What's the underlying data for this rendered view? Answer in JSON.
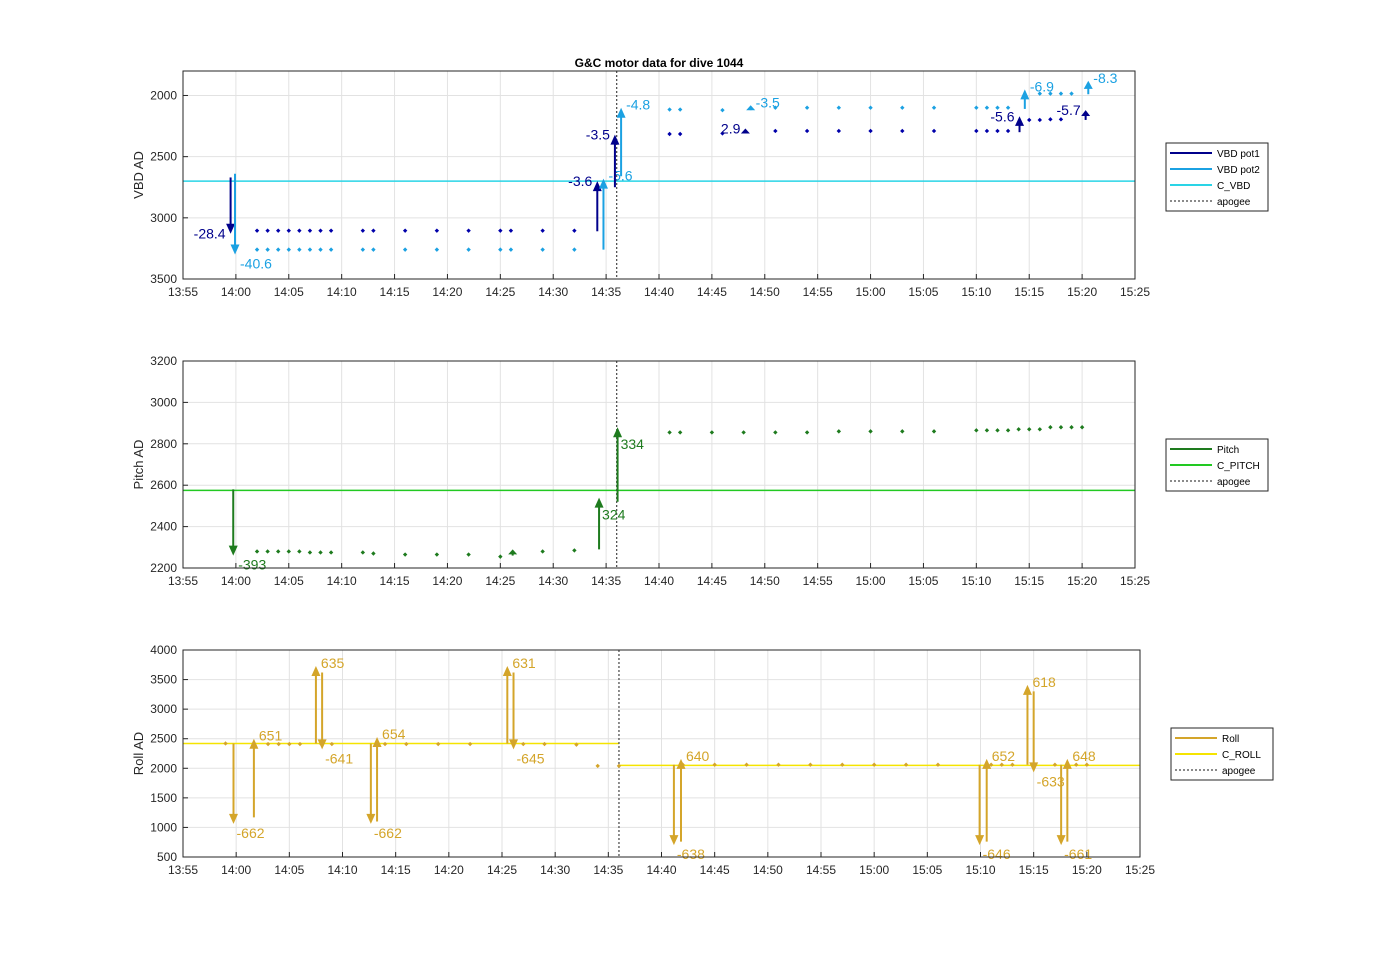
{
  "chart_data": [
    {
      "type": "scatter",
      "title": "G&C motor data for dive 1044",
      "ylabel": "VBD AD",
      "xlim": [
        "13:55",
        "15:25"
      ],
      "ylim": [
        3500,
        1800
      ],
      "y_reversed": true,
      "yticks": [
        2000,
        2500,
        3000,
        3500
      ],
      "xticks": [
        "13:55",
        "14:00",
        "14:05",
        "14:10",
        "14:15",
        "14:20",
        "14:25",
        "14:30",
        "14:35",
        "14:40",
        "14:45",
        "14:50",
        "14:55",
        "15:00",
        "15:05",
        "15:10",
        "15:15",
        "15:20",
        "15:25"
      ],
      "grid": true,
      "legend_position": "outside-right",
      "apogee": "14:36",
      "legend": [
        {
          "label": "VBD pot1",
          "color": "#00008b",
          "style": "solid"
        },
        {
          "label": "VBD pot2",
          "color": "#1ba1e2",
          "style": "solid"
        },
        {
          "label": "C_VBD",
          "color": "#2ad4e6",
          "style": "solid"
        },
        {
          "label": "apogee",
          "color": "#444444",
          "style": "dotted"
        }
      ],
      "hlines": [
        {
          "y": 2700,
          "color": "#2ad4e6"
        }
      ],
      "series": [
        {
          "color": "#0000aa",
          "x": [
            "14:02",
            "14:03",
            "14:04",
            "14:05",
            "14:06",
            "14:07",
            "14:08",
            "14:09",
            "14:12",
            "14:13",
            "14:16",
            "14:19",
            "14:22",
            "14:25",
            "14:26",
            "14:29",
            "14:32",
            "14:41",
            "14:42",
            "14:46",
            "14:51",
            "14:54",
            "14:57",
            "15:00",
            "15:03",
            "15:06",
            "15:10",
            "15:11",
            "15:12",
            "15:13",
            "15:15",
            "15:16",
            "15:17",
            "15:18"
          ],
          "y": [
            3105,
            3105,
            3105,
            3105,
            3105,
            3105,
            3105,
            3105,
            3105,
            3105,
            3105,
            3105,
            3105,
            3105,
            3105,
            3105,
            3105,
            2315,
            2315,
            2310,
            2290,
            2290,
            2290,
            2290,
            2290,
            2290,
            2290,
            2290,
            2290,
            2290,
            2200,
            2200,
            2195,
            2195
          ]
        },
        {
          "color": "#1ba1e2",
          "x": [
            "14:02",
            "14:03",
            "14:04",
            "14:05",
            "14:06",
            "14:07",
            "14:08",
            "14:09",
            "14:12",
            "14:13",
            "14:16",
            "14:19",
            "14:22",
            "14:25",
            "14:26",
            "14:29",
            "14:32",
            "14:41",
            "14:42",
            "14:46",
            "14:51",
            "14:54",
            "14:57",
            "15:00",
            "15:03",
            "15:06",
            "15:10",
            "15:11",
            "15:12",
            "15:13",
            "15:16",
            "15:17",
            "15:18",
            "15:19"
          ],
          "y": [
            3260,
            3260,
            3260,
            3260,
            3260,
            3260,
            3260,
            3260,
            3260,
            3260,
            3260,
            3260,
            3260,
            3260,
            3260,
            3260,
            3260,
            2115,
            2115,
            2120,
            2100,
            2100,
            2100,
            2100,
            2100,
            2100,
            2100,
            2100,
            2100,
            2100,
            1985,
            1985,
            1985,
            1985
          ]
        }
      ],
      "arrows": [
        {
          "x": "13:59:30",
          "from": 2670,
          "to": 3130,
          "label": "-28.4",
          "color": "#00008b",
          "label_side": "left"
        },
        {
          "x": "13:59:55",
          "from": 2640,
          "to": 3300,
          "label": "-40.6",
          "color": "#1ba1e2",
          "label_side": "right"
        },
        {
          "x": "14:34:10",
          "from": 3110,
          "to": 2700,
          "label": "-3.6",
          "color": "#00008b",
          "label_side": "left"
        },
        {
          "x": "14:34:45",
          "from": 3260,
          "to": 2680,
          "label": "-5.6",
          "color": "#1ba1e2",
          "label_side": "right"
        },
        {
          "x": "14:35:50",
          "from": 2750,
          "to": 2320,
          "label": "-3.5",
          "color": "#00008b",
          "label_side": "left"
        },
        {
          "x": "14:36:25",
          "from": 2660,
          "to": 2100,
          "label": "-4.8",
          "color": "#1ba1e2",
          "label_side": "right"
        },
        {
          "x": "14:48:10",
          "from": 2310,
          "to": 2270,
          "label": "2.9",
          "color": "#00008b",
          "label_side": "left"
        },
        {
          "x": "14:48:40",
          "from": 2120,
          "to": 2080,
          "label": "-3.5",
          "color": "#1ba1e2",
          "label_side": "right"
        },
        {
          "x": "15:14:05",
          "from": 2300,
          "to": 2170,
          "label": "-5.6",
          "color": "#00008b",
          "label_side": "left"
        },
        {
          "x": "15:14:35",
          "from": 2110,
          "to": 1950,
          "label": "-6.9",
          "color": "#1ba1e2",
          "label_side": "right"
        },
        {
          "x": "15:20:20",
          "from": 2200,
          "to": 2120,
          "label": "-5.7",
          "color": "#00008b",
          "label_side": "left"
        },
        {
          "x": "15:20:35",
          "from": 1990,
          "to": 1880,
          "label": "-8.3",
          "color": "#1ba1e2",
          "label_side": "right"
        }
      ]
    },
    {
      "type": "scatter",
      "title": "",
      "ylabel": "Pitch AD",
      "xlim": [
        "13:55",
        "15:25"
      ],
      "ylim": [
        2200,
        3200
      ],
      "y_reversed": false,
      "yticks": [
        2200,
        2400,
        2600,
        2800,
        3000,
        3200
      ],
      "xticks": [
        "13:55",
        "14:00",
        "14:05",
        "14:10",
        "14:15",
        "14:20",
        "14:25",
        "14:30",
        "14:35",
        "14:40",
        "14:45",
        "14:50",
        "14:55",
        "15:00",
        "15:05",
        "15:10",
        "15:15",
        "15:20",
        "15:25"
      ],
      "grid": true,
      "legend_position": "outside-right",
      "apogee": "14:36",
      "legend": [
        {
          "label": "Pitch",
          "color": "#1e7b1e",
          "style": "solid"
        },
        {
          "label": "C_PITCH",
          "color": "#22c922",
          "style": "solid"
        },
        {
          "label": "apogee",
          "color": "#444444",
          "style": "dotted"
        }
      ],
      "hlines": [
        {
          "y": 2575,
          "color": "#22c922"
        }
      ],
      "series": [
        {
          "color": "#1e7b1e",
          "x": [
            "14:02",
            "14:03",
            "14:04",
            "14:05",
            "14:06",
            "14:07",
            "14:08",
            "14:09",
            "14:12",
            "14:13",
            "14:16",
            "14:19",
            "14:22",
            "14:25",
            "14:29",
            "14:32",
            "14:41",
            "14:42",
            "14:45",
            "14:48",
            "14:51",
            "14:54",
            "14:57",
            "15:00",
            "15:03",
            "15:06",
            "15:10",
            "15:11",
            "15:12",
            "15:13",
            "15:14",
            "15:15",
            "15:16",
            "15:17",
            "15:18",
            "15:19",
            "15:20"
          ],
          "y": [
            2280,
            2280,
            2280,
            2280,
            2280,
            2275,
            2275,
            2275,
            2275,
            2270,
            2265,
            2265,
            2265,
            2255,
            2280,
            2285,
            2855,
            2855,
            2855,
            2855,
            2855,
            2855,
            2860,
            2860,
            2860,
            2860,
            2865,
            2865,
            2865,
            2865,
            2870,
            2870,
            2870,
            2880,
            2880,
            2880,
            2880
          ]
        }
      ],
      "arrows": [
        {
          "x": "13:59:45",
          "from": 2580,
          "to": 2260,
          "label": "-393",
          "color": "#1e7b1e",
          "label_side": "right"
        },
        {
          "x": "14:26:10",
          "from": 2260,
          "to": 2290,
          "label": "",
          "color": "#1e7b1e",
          "label_side": "right"
        },
        {
          "x": "14:34:20",
          "from": 2290,
          "to": 2540,
          "label": "324",
          "color": "#1e7b1e",
          "label_side": "right-below"
        },
        {
          "x": "14:36:05",
          "from": 2520,
          "to": 2880,
          "label": "334",
          "color": "#1e7b1e",
          "label_side": "right-below"
        }
      ]
    },
    {
      "type": "scatter",
      "title": "",
      "ylabel": "Roll AD",
      "xlim": [
        "13:55",
        "15:25"
      ],
      "ylim": [
        500,
        4000
      ],
      "y_reversed": false,
      "yticks": [
        500,
        1000,
        1500,
        2000,
        2500,
        3000,
        3500,
        4000
      ],
      "xticks": [
        "13:55",
        "14:00",
        "14:05",
        "14:10",
        "14:15",
        "14:20",
        "14:25",
        "14:30",
        "14:35",
        "14:40",
        "14:45",
        "14:50",
        "14:55",
        "15:00",
        "15:05",
        "15:10",
        "15:15",
        "15:20",
        "15:25"
      ],
      "grid": true,
      "legend_position": "outside-right",
      "apogee": "14:36",
      "legend": [
        {
          "label": "Roll",
          "color": "#d4a52a",
          "style": "solid"
        },
        {
          "label": "C_ROLL",
          "color": "#f5e400",
          "style": "solid"
        },
        {
          "label": "apogee",
          "color": "#444444",
          "style": "dotted"
        }
      ],
      "hsegments": [
        {
          "x_from": "13:55",
          "x_to": "14:36",
          "y": 2420,
          "color": "#f5e400"
        },
        {
          "x_from": "14:36",
          "x_to": "15:25",
          "y": 2050,
          "color": "#f5e400"
        }
      ],
      "series": [
        {
          "color": "#d4a52a",
          "x": [
            "13:59",
            "14:03",
            "14:04",
            "14:05",
            "14:06",
            "14:08",
            "14:09",
            "14:14",
            "14:16",
            "14:19",
            "14:22",
            "14:27",
            "14:29",
            "14:32",
            "14:34",
            "14:36",
            "14:42",
            "14:45",
            "14:48",
            "14:51",
            "14:54",
            "14:57",
            "15:00",
            "15:03",
            "15:06",
            "15:11",
            "15:12",
            "15:13",
            "15:17",
            "15:19",
            "15:20"
          ],
          "y": [
            2420,
            2410,
            2410,
            2410,
            2410,
            2410,
            2410,
            2410,
            2410,
            2410,
            2410,
            2410,
            2410,
            2400,
            2040,
            2040,
            2060,
            2060,
            2060,
            2060,
            2060,
            2060,
            2060,
            2060,
            2060,
            2060,
            2060,
            2060,
            2060,
            2060,
            2060
          ]
        }
      ],
      "arrows": [
        {
          "x": "13:59:45",
          "from": 2420,
          "to": 1060,
          "label": "-662",
          "color": "#d4a52a",
          "label_side": "right-below"
        },
        {
          "x": "14:01:40",
          "from": 1170,
          "to": 2500,
          "label": "651",
          "color": "#d4a52a",
          "label_side": "right"
        },
        {
          "x": "14:07:30",
          "from": 2420,
          "to": 3730,
          "label": "635",
          "color": "#d4a52a",
          "label_side": "right"
        },
        {
          "x": "14:08:05",
          "from": 3620,
          "to": 2320,
          "label": "-641",
          "color": "#d4a52a",
          "label_side": "right-below"
        },
        {
          "x": "14:12:40",
          "from": 2420,
          "to": 1060,
          "label": "-662",
          "color": "#d4a52a",
          "label_side": "right-below"
        },
        {
          "x": "14:13:15",
          "from": 1100,
          "to": 2530,
          "label": "654",
          "color": "#d4a52a",
          "label_side": "right"
        },
        {
          "x": "14:25:30",
          "from": 2420,
          "to": 3730,
          "label": "631",
          "color": "#d4a52a",
          "label_side": "right"
        },
        {
          "x": "14:26:05",
          "from": 3620,
          "to": 2320,
          "label": "-645",
          "color": "#d4a52a",
          "label_side": "right-below"
        },
        {
          "x": "14:41:10",
          "from": 2060,
          "to": 700,
          "label": "-638",
          "color": "#d4a52a",
          "label_side": "right-below"
        },
        {
          "x": "14:41:50",
          "from": 760,
          "to": 2160,
          "label": "640",
          "color": "#d4a52a",
          "label_side": "right"
        },
        {
          "x": "15:09:55",
          "from": 2060,
          "to": 700,
          "label": "-646",
          "color": "#d4a52a",
          "label_side": "right-below"
        },
        {
          "x": "15:10:35",
          "from": 760,
          "to": 2160,
          "label": "652",
          "color": "#d4a52a",
          "label_side": "right"
        },
        {
          "x": "15:14:25",
          "from": 2060,
          "to": 3410,
          "label": "618",
          "color": "#d4a52a",
          "label_side": "right"
        },
        {
          "x": "15:15:00",
          "from": 3300,
          "to": 1930,
          "label": "-633",
          "color": "#d4a52a",
          "label_side": "right-below"
        },
        {
          "x": "15:17:35",
          "from": 2060,
          "to": 700,
          "label": "-661",
          "color": "#d4a52a",
          "label_side": "right-below"
        },
        {
          "x": "15:18:10",
          "from": 760,
          "to": 2160,
          "label": "648",
          "color": "#d4a52a",
          "label_side": "right"
        }
      ]
    }
  ]
}
